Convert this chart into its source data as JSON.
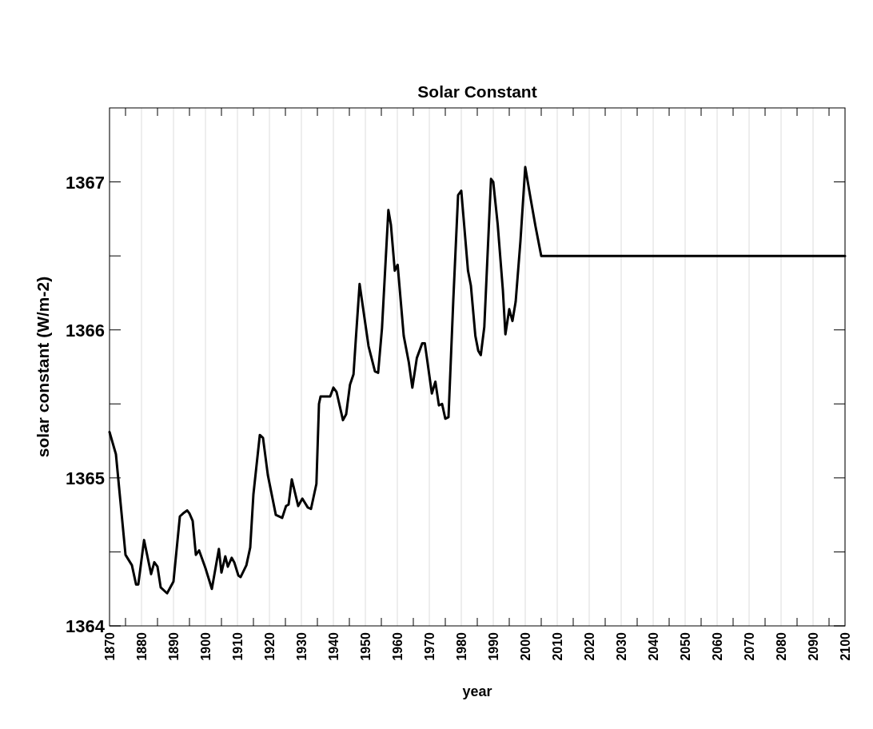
{
  "chart_data": {
    "type": "line",
    "title": "Solar Constant",
    "xlabel": "year",
    "ylabel": "solar constant (W/m-2)",
    "xlim": [
      1870,
      2100
    ],
    "ylim": [
      1364,
      1367.5
    ],
    "xticks": [
      1870,
      {
        "value": 1875,
        "label": null
      },
      1880,
      {
        "value": 1885,
        "label": null
      },
      1890,
      {
        "value": 1895,
        "label": null
      },
      1900,
      {
        "value": 1905,
        "label": null
      },
      1910,
      {
        "value": 1915,
        "label": null
      },
      1920,
      {
        "value": 1925,
        "label": null
      },
      1930,
      {
        "value": 1935,
        "label": null
      },
      1940,
      {
        "value": 1945,
        "label": null
      },
      1950,
      {
        "value": 1955,
        "label": null
      },
      1960,
      {
        "value": 1965,
        "label": null
      },
      1970,
      {
        "value": 1975,
        "label": null
      },
      1980,
      {
        "value": 1985,
        "label": null
      },
      1990,
      {
        "value": 1995,
        "label": null
      },
      2000,
      {
        "value": 2005,
        "label": null
      },
      2010,
      {
        "value": 2015,
        "label": null
      },
      2020,
      {
        "value": 2025,
        "label": null
      },
      2030,
      {
        "value": 2035,
        "label": null
      },
      2040,
      {
        "value": 2045,
        "label": null
      },
      2050,
      {
        "value": 2055,
        "label": null
      },
      2060,
      {
        "value": 2065,
        "label": null
      },
      2070,
      {
        "value": 2075,
        "label": null
      },
      2080,
      {
        "value": 2085,
        "label": null
      },
      2090,
      {
        "value": 2095,
        "label": null
      },
      2100
    ],
    "yticks": [
      1364,
      {
        "value": 1364.5,
        "label": null
      },
      1365,
      {
        "value": 1365.5,
        "label": null
      },
      1366,
      {
        "value": 1366.5,
        "label": null
      },
      1367
    ],
    "grid": "x",
    "line_style": "solid",
    "series": [
      {
        "color": "#000000",
        "x": [
          1870,
          1872,
          1875,
          1877,
          1878.3,
          1879,
          1880.8,
          1883,
          1884,
          1885,
          1886,
          1888,
          1890,
          1892,
          1893,
          1894.3,
          1895,
          1896,
          1897,
          1898,
          1900,
          1902,
          1904.2,
          1905,
          1906.2,
          1907,
          1908.2,
          1909,
          1910.3,
          1911,
          1912.8,
          1914,
          1915,
          1917,
          1918,
          1919.5,
          1922,
          1924,
          1925.2,
          1926,
          1927,
          1929,
          1930.3,
          1932,
          1933,
          1934.7,
          1935.5,
          1936,
          1937,
          1939,
          1940,
          1941,
          1943,
          1944,
          1945.2,
          1946.3,
          1947,
          1948.2,
          1951,
          1953,
          1954,
          1955.2,
          1957.2,
          1958,
          1959.2,
          1960.1,
          1962,
          1963.6,
          1964.7,
          1966.1,
          1967.8,
          1968.6,
          1970.8,
          1971.9,
          1973,
          1974,
          1975,
          1976,
          1977.5,
          1979,
          1980,
          1982.1,
          1983,
          1984.4,
          1985.3,
          1986.1,
          1987.2,
          1988.6,
          1989.3,
          1990,
          1991.4,
          1993,
          1993.8,
          1995,
          1996,
          1997,
          1998.5,
          2000,
          2001.5,
          2003.2,
          2005,
          2100
        ],
        "values": [
          1365.31,
          1365.16,
          1364.48,
          1364.41,
          1364.28,
          1364.28,
          1364.58,
          1364.35,
          1364.43,
          1364.4,
          1364.26,
          1364.22,
          1364.3,
          1364.74,
          1364.76,
          1364.78,
          1364.76,
          1364.71,
          1364.48,
          1364.51,
          1364.39,
          1364.25,
          1364.52,
          1364.36,
          1364.47,
          1364.4,
          1364.46,
          1364.43,
          1364.34,
          1364.33,
          1364.41,
          1364.53,
          1364.89,
          1365.29,
          1365.27,
          1365.02,
          1364.75,
          1364.73,
          1364.81,
          1364.82,
          1364.99,
          1364.81,
          1364.86,
          1364.8,
          1364.79,
          1364.96,
          1365.5,
          1365.55,
          1365.55,
          1365.55,
          1365.61,
          1365.58,
          1365.39,
          1365.43,
          1365.63,
          1365.7,
          1365.93,
          1366.31,
          1365.89,
          1365.72,
          1365.71,
          1366.01,
          1366.81,
          1366.71,
          1366.4,
          1366.44,
          1365.96,
          1365.78,
          1365.61,
          1365.81,
          1365.91,
          1365.91,
          1365.57,
          1365.65,
          1365.49,
          1365.5,
          1365.4,
          1365.41,
          1366.2,
          1366.91,
          1366.94,
          1366.4,
          1366.3,
          1365.96,
          1365.86,
          1365.83,
          1366.02,
          1366.69,
          1367.02,
          1367.0,
          1366.71,
          1366.27,
          1365.97,
          1366.14,
          1366.06,
          1366.19,
          1366.6,
          1367.1,
          1366.91,
          1366.7,
          1366.5,
          1366.5
        ]
      }
    ]
  }
}
